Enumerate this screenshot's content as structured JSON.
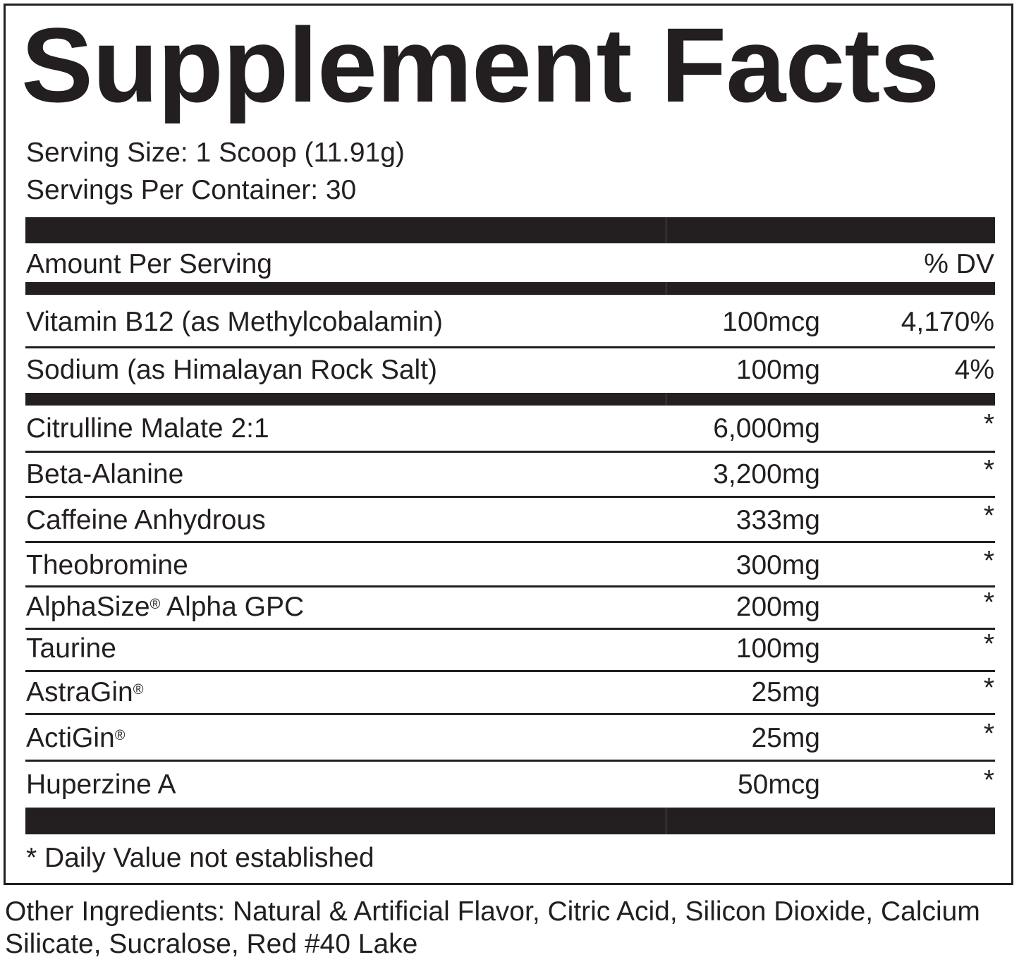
{
  "title": "Supplement Facts",
  "serving_size": "Serving Size: 1 Scoop (11.91g)",
  "servings_per_container": "Servings Per Container: 30",
  "header": {
    "amount_per_serving": "Amount Per Serving",
    "dv": "% DV"
  },
  "vitamins": [
    {
      "label": "Vitamin B12 (as Methylcobalamin)",
      "amount": "100mcg",
      "dv": "4,170%"
    },
    {
      "label": "Sodium (as Himalayan Rock Salt)",
      "amount": "100mg",
      "dv": "4%"
    }
  ],
  "ingredients": [
    {
      "label": "Citrulline Malate 2:1",
      "amount": "6,000mg",
      "dv": "*"
    },
    {
      "label": "Beta-Alanine",
      "amount": "3,200mg",
      "dv": "*"
    },
    {
      "label": "Caffeine Anhydrous",
      "amount": "333mg",
      "dv": "*"
    },
    {
      "label": "Theobromine",
      "amount": "300mg",
      "dv": "*"
    },
    {
      "label": "AlphaSize® Alpha GPC",
      "amount": "200mg",
      "dv": "*"
    },
    {
      "label": "Taurine",
      "amount": "100mg",
      "dv": "*"
    },
    {
      "label": "AstraGin®",
      "amount": "25mg",
      "dv": "*"
    },
    {
      "label": "ActiGin®",
      "amount": "25mg",
      "dv": "*"
    },
    {
      "label": "Huperzine A",
      "amount": "50mcg",
      "dv": "*"
    }
  ],
  "footnote": "* Daily Value not established",
  "other_ingredients": "Other Ingredients: Natural & Artificial Flavor, Citric Acid, Silicon Dioxide, Calcium Silicate, Sucralose, Red #40 Lake",
  "colors": {
    "ink": "#231f20",
    "background": "#ffffff"
  }
}
